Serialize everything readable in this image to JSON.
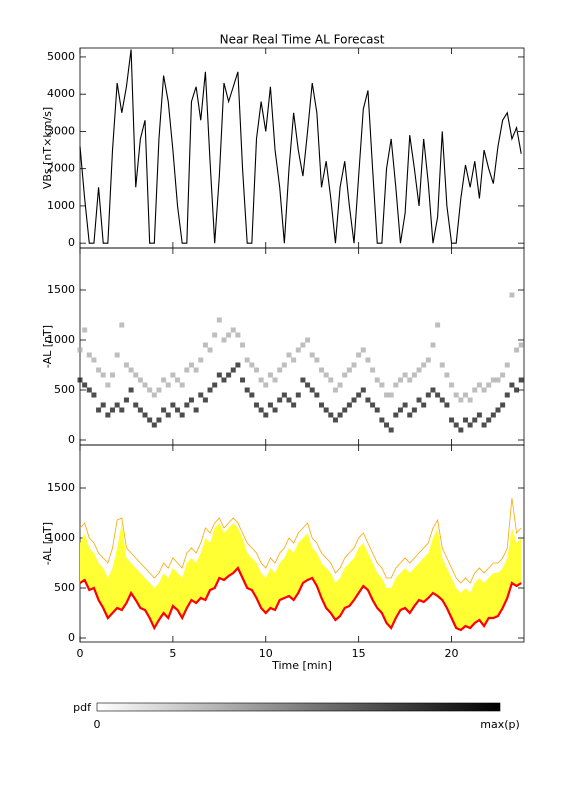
{
  "chart_data": [
    {
      "type": "line",
      "title": "Near Real Time AL Forecast",
      "ylabel": "VBs [nT×km/s]",
      "xlim": [
        0,
        23.9
      ],
      "xticks": [
        0,
        5,
        10,
        15,
        20
      ],
      "ylim": [
        -130,
        5240
      ],
      "yticks": [
        0,
        1000,
        2000,
        3000,
        4000,
        5000
      ],
      "x": [
        0,
        0.25,
        0.5,
        0.75,
        1,
        1.25,
        1.5,
        1.75,
        2,
        2.25,
        2.5,
        2.75,
        3,
        3.25,
        3.5,
        3.75,
        4,
        4.25,
        4.5,
        4.75,
        5,
        5.25,
        5.5,
        5.75,
        6,
        6.25,
        6.5,
        6.75,
        7,
        7.25,
        7.5,
        7.75,
        8,
        8.25,
        8.5,
        8.75,
        9,
        9.25,
        9.5,
        9.75,
        10,
        10.25,
        10.5,
        10.75,
        11,
        11.25,
        11.5,
        11.75,
        12,
        12.25,
        12.5,
        12.75,
        13,
        13.25,
        13.5,
        13.75,
        14,
        14.25,
        14.5,
        14.75,
        15,
        15.25,
        15.5,
        15.75,
        16,
        16.25,
        16.5,
        16.75,
        17,
        17.25,
        17.5,
        17.75,
        18,
        18.25,
        18.5,
        18.75,
        19,
        19.25,
        19.5,
        19.75,
        20,
        20.25,
        20.5,
        20.75,
        21,
        21.25,
        21.5,
        21.75,
        22,
        22.25,
        22.5,
        22.75,
        23,
        23.25,
        23.5,
        23.75
      ],
      "series": [
        {
          "color": "#000000",
          "values": [
            2600,
            1200,
            0,
            0,
            1500,
            0,
            0,
            2500,
            4300,
            3500,
            4200,
            5200,
            1500,
            2800,
            3300,
            0,
            0,
            2800,
            4500,
            3800,
            2500,
            1000,
            0,
            0,
            3800,
            4200,
            3300,
            4600,
            2200,
            0,
            1800,
            4300,
            3800,
            4200,
            4600,
            2000,
            0,
            0,
            2800,
            3800,
            3000,
            4200,
            2500,
            1500,
            0,
            2000,
            3500,
            2500,
            1800,
            3000,
            4300,
            3500,
            1500,
            2200,
            1200,
            0,
            1500,
            2200,
            1000,
            0,
            1800,
            3600,
            4100,
            2000,
            0,
            0,
            2000,
            2800,
            1500,
            0,
            800,
            2900,
            2000,
            1000,
            2800,
            1600,
            0,
            700,
            3000,
            1000,
            0,
            0,
            1200,
            2100,
            1500,
            2200,
            1200,
            2500,
            2000,
            1600,
            2600,
            3300,
            3500,
            2800,
            3100,
            2400
          ]
        }
      ]
    },
    {
      "type": "scatter",
      "ylabel": "-AL [nT]",
      "xlim": [
        0,
        23.9
      ],
      "xticks": [
        0,
        5,
        10,
        15,
        20
      ],
      "ylim": [
        -50,
        1920
      ],
      "yticks": [
        0,
        500,
        1000,
        1500
      ],
      "x": [
        0,
        0.25,
        0.5,
        0.75,
        1,
        1.25,
        1.5,
        1.75,
        2,
        2.25,
        2.5,
        2.75,
        3,
        3.25,
        3.5,
        3.75,
        4,
        4.25,
        4.5,
        4.75,
        5,
        5.25,
        5.5,
        5.75,
        6,
        6.25,
        6.5,
        6.75,
        7,
        7.25,
        7.5,
        7.75,
        8,
        8.25,
        8.5,
        8.75,
        9,
        9.25,
        9.5,
        9.75,
        10,
        10.25,
        10.5,
        10.75,
        11,
        11.25,
        11.5,
        11.75,
        12,
        12.25,
        12.5,
        12.75,
        13,
        13.25,
        13.5,
        13.75,
        14,
        14.25,
        14.5,
        14.75,
        15,
        15.25,
        15.5,
        15.75,
        16,
        16.25,
        16.5,
        16.75,
        17,
        17.25,
        17.5,
        17.75,
        18,
        18.25,
        18.5,
        18.75,
        19,
        19.25,
        19.5,
        19.75,
        20,
        20.25,
        20.5,
        20.75,
        21,
        21.25,
        21.5,
        21.75,
        22,
        22.25,
        22.5,
        22.75,
        23,
        23.25,
        23.5,
        23.75
      ],
      "series": [
        {
          "color": "#111111",
          "values": [
            600,
            550,
            500,
            450,
            300,
            350,
            250,
            300,
            350,
            300,
            400,
            500,
            350,
            300,
            250,
            200,
            150,
            200,
            300,
            250,
            350,
            300,
            250,
            350,
            400,
            300,
            450,
            400,
            500,
            550,
            650,
            600,
            650,
            700,
            750,
            600,
            500,
            450,
            350,
            300,
            250,
            350,
            300,
            400,
            450,
            400,
            350,
            450,
            600,
            550,
            500,
            450,
            350,
            300,
            250,
            200,
            250,
            300,
            350,
            400,
            450,
            500,
            400,
            350,
            300,
            200,
            150,
            100,
            250,
            300,
            350,
            250,
            300,
            400,
            350,
            450,
            500,
            450,
            400,
            350,
            200,
            150,
            100,
            200,
            150,
            200,
            250,
            150,
            200,
            250,
            300,
            350,
            450,
            550,
            500,
            600
          ]
        },
        {
          "color": "#a8a8a8",
          "values": [
            900,
            1100,
            850,
            800,
            700,
            650,
            550,
            650,
            850,
            1150,
            750,
            700,
            650,
            600,
            550,
            500,
            450,
            500,
            600,
            550,
            650,
            600,
            550,
            700,
            750,
            700,
            800,
            950,
            900,
            1050,
            1200,
            1000,
            1050,
            1100,
            1050,
            950,
            800,
            750,
            700,
            600,
            550,
            650,
            600,
            700,
            750,
            850,
            800,
            900,
            950,
            1000,
            850,
            800,
            700,
            650,
            600,
            500,
            550,
            650,
            700,
            750,
            850,
            900,
            800,
            700,
            600,
            550,
            450,
            450,
            550,
            600,
            650,
            600,
            650,
            700,
            750,
            800,
            950,
            1150,
            750,
            650,
            550,
            450,
            400,
            450,
            400,
            500,
            550,
            500,
            550,
            600,
            600,
            650,
            750,
            1450,
            900,
            950
          ]
        }
      ]
    },
    {
      "type": "band",
      "ylabel": "-AL [nT]",
      "xlabel": "Time [min]",
      "xlim": [
        0,
        23.9
      ],
      "xticks": [
        0,
        5,
        10,
        15,
        20
      ],
      "ylim": [
        -40,
        1930
      ],
      "yticks": [
        0,
        500,
        1000,
        1500
      ],
      "x": [
        0,
        0.25,
        0.5,
        0.75,
        1,
        1.25,
        1.5,
        1.75,
        2,
        2.25,
        2.5,
        2.75,
        3,
        3.25,
        3.5,
        3.75,
        4,
        4.25,
        4.5,
        4.75,
        5,
        5.25,
        5.5,
        5.75,
        6,
        6.25,
        6.5,
        6.75,
        7,
        7.25,
        7.5,
        7.75,
        8,
        8.25,
        8.5,
        8.75,
        9,
        9.25,
        9.5,
        9.75,
        10,
        10.25,
        10.5,
        10.75,
        11,
        11.25,
        11.5,
        11.75,
        12,
        12.25,
        12.5,
        12.75,
        13,
        13.25,
        13.5,
        13.75,
        14,
        14.25,
        14.5,
        14.75,
        15,
        15.25,
        15.5,
        15.75,
        16,
        16.25,
        16.5,
        16.75,
        17,
        17.25,
        17.5,
        17.75,
        18,
        18.25,
        18.5,
        18.75,
        19,
        19.25,
        19.5,
        19.75,
        20,
        20.25,
        20.5,
        20.75,
        21,
        21.25,
        21.5,
        21.75,
        22,
        22.25,
        22.5,
        22.75,
        23,
        23.25,
        23.5,
        23.75
      ],
      "series": [
        {
          "color": "#ff0000",
          "values": [
            550,
            580,
            480,
            500,
            380,
            300,
            200,
            250,
            300,
            280,
            350,
            450,
            380,
            300,
            280,
            200,
            100,
            180,
            250,
            200,
            320,
            280,
            200,
            300,
            380,
            350,
            400,
            380,
            480,
            500,
            600,
            580,
            620,
            650,
            700,
            600,
            500,
            480,
            400,
            300,
            250,
            300,
            280,
            380,
            400,
            420,
            380,
            450,
            550,
            580,
            600,
            520,
            400,
            300,
            250,
            180,
            220,
            300,
            320,
            380,
            450,
            520,
            480,
            380,
            300,
            250,
            150,
            100,
            200,
            280,
            300,
            250,
            320,
            380,
            360,
            400,
            450,
            420,
            380,
            300,
            200,
            100,
            80,
            120,
            100,
            150,
            180,
            120,
            200,
            200,
            220,
            300,
            400,
            550,
            520,
            550
          ]
        },
        {
          "color": "#ffff33",
          "values": [
            950,
            1050,
            900,
            850,
            750,
            700,
            600,
            700,
            900,
            1150,
            800,
            750,
            700,
            650,
            600,
            550,
            500,
            550,
            650,
            600,
            700,
            650,
            600,
            750,
            800,
            750,
            850,
            1000,
            950,
            1100,
            1150,
            1050,
            1100,
            1150,
            1100,
            1000,
            850,
            800,
            750,
            650,
            600,
            700,
            650,
            750,
            800,
            900,
            850,
            950,
            1000,
            1050,
            900,
            850,
            750,
            700,
            650,
            550,
            600,
            700,
            750,
            800,
            900,
            950,
            850,
            750,
            650,
            600,
            500,
            500,
            600,
            650,
            700,
            650,
            700,
            750,
            800,
            850,
            1000,
            1100,
            800,
            700,
            600,
            500,
            450,
            500,
            450,
            550,
            600,
            550,
            600,
            650,
            650,
            700,
            800,
            1100,
            950,
            1000
          ]
        },
        {
          "color": "#ffa500",
          "values": [
            1100,
            1150,
            1000,
            950,
            850,
            800,
            750,
            900,
            1180,
            1200,
            900,
            850,
            800,
            750,
            700,
            650,
            600,
            650,
            750,
            700,
            800,
            750,
            700,
            850,
            900,
            850,
            950,
            1100,
            1050,
            1150,
            1200,
            1100,
            1150,
            1200,
            1150,
            1050,
            950,
            900,
            850,
            750,
            700,
            800,
            750,
            850,
            900,
            1000,
            950,
            1050,
            1100,
            1150,
            1000,
            950,
            850,
            800,
            750,
            650,
            700,
            800,
            850,
            900,
            1000,
            1050,
            950,
            850,
            750,
            700,
            600,
            600,
            700,
            750,
            800,
            750,
            800,
            850,
            900,
            950,
            1100,
            1180,
            900,
            800,
            700,
            600,
            550,
            600,
            550,
            650,
            700,
            650,
            700,
            750,
            750,
            800,
            900,
            1400,
            1050,
            1100
          ]
        }
      ]
    }
  ],
  "colorbar": {
    "label": "pdf",
    "min_label": "0",
    "max_label": "max(p)"
  }
}
